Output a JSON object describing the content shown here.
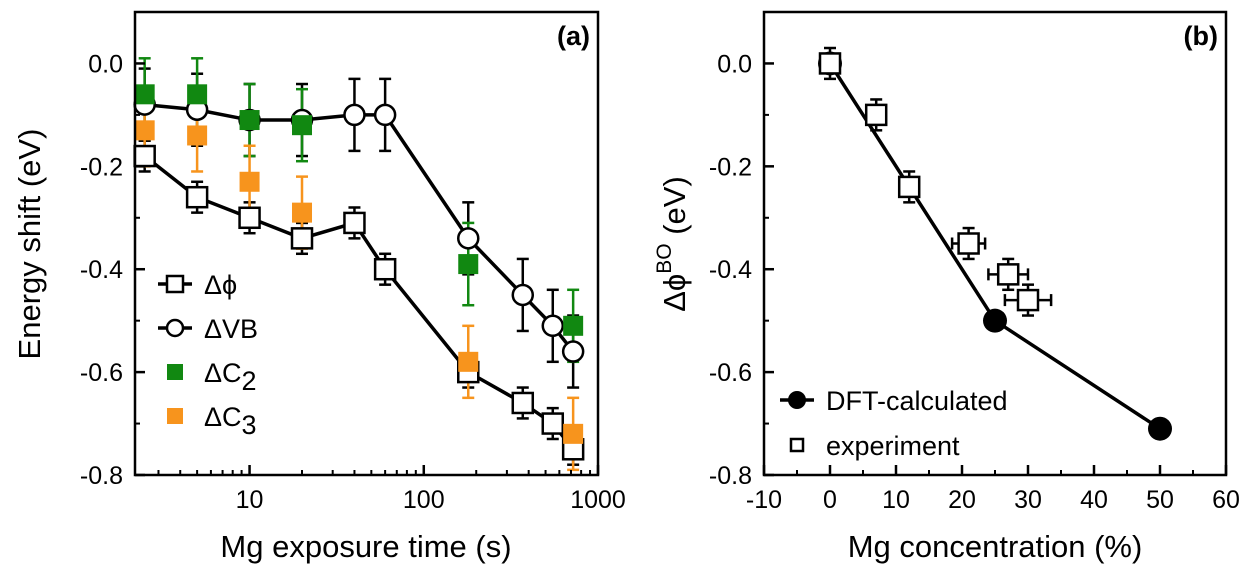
{
  "chart_data": [
    {
      "type": "scatter",
      "panel_label": "(a)",
      "xscale": "log",
      "xlim": [
        2.2,
        1000
      ],
      "ylim": [
        -0.8,
        0.1
      ],
      "xlabel": "Mg exposure time (s)",
      "ylabel": "Energy shift (eV)",
      "xticks": [
        10,
        100,
        1000
      ],
      "xtick_labels": [
        "10",
        "100",
        "1000"
      ],
      "yticks": [
        0.0,
        -0.2,
        -0.4,
        -0.6,
        -0.8
      ],
      "ytick_labels": [
        "0.0",
        "-0.2",
        "-0.4",
        "-0.6",
        "-0.8"
      ],
      "legend_position": "lower-left",
      "series": [
        {
          "name": "Δϕ",
          "legend_base": "Δϕ",
          "legend_sub": "",
          "marker": "open-square",
          "color": "#000000",
          "line": true,
          "x": [
            2.5,
            5,
            10,
            20,
            40,
            60,
            180,
            370,
            550,
            720
          ],
          "y": [
            -0.18,
            -0.26,
            -0.3,
            -0.34,
            -0.31,
            -0.4,
            -0.6,
            -0.66,
            -0.7,
            -0.75
          ],
          "yerr": [
            0.03,
            0.03,
            0.03,
            0.03,
            0.03,
            0.03,
            0.03,
            0.03,
            0.03,
            0.03
          ]
        },
        {
          "name": "ΔVB",
          "legend_base": "ΔVB",
          "legend_sub": "",
          "marker": "open-circle",
          "color": "#000000",
          "line": true,
          "x": [
            2.5,
            5,
            10,
            20,
            40,
            60,
            180,
            370,
            550,
            720
          ],
          "y": [
            -0.08,
            -0.09,
            -0.11,
            -0.11,
            -0.1,
            -0.1,
            -0.34,
            -0.45,
            -0.51,
            -0.56
          ],
          "yerr": [
            0.07,
            0.07,
            0.07,
            0.07,
            0.07,
            0.07,
            0.07,
            0.07,
            0.07,
            0.07
          ]
        },
        {
          "name": "ΔC2",
          "legend_base": "ΔC",
          "legend_sub": "2",
          "marker": "filled-square",
          "color": "#118811",
          "line": false,
          "x": [
            2.5,
            5,
            10,
            20,
            180,
            720
          ],
          "y": [
            -0.06,
            -0.06,
            -0.11,
            -0.12,
            -0.39,
            -0.51
          ],
          "yerr": [
            0.07,
            0.07,
            0.07,
            0.07,
            0.08,
            0.07
          ]
        },
        {
          "name": "ΔC3",
          "legend_base": "ΔC",
          "legend_sub": "3",
          "marker": "filled-square",
          "color": "#f7941d",
          "line": false,
          "x": [
            2.5,
            5,
            10,
            20,
            180,
            720
          ],
          "y": [
            -0.13,
            -0.14,
            -0.23,
            -0.29,
            -0.58,
            -0.72
          ],
          "yerr": [
            0.07,
            0.07,
            0.07,
            0.07,
            0.07,
            0.07
          ]
        }
      ]
    },
    {
      "type": "scatter",
      "panel_label": "(b)",
      "xlim": [
        -10,
        60
      ],
      "ylim": [
        -0.8,
        0.1
      ],
      "xlabel": "Mg concentration (%)",
      "ylabel_base": "Δϕ",
      "ylabel_sup": "BO",
      "ylabel_unit": " (eV)",
      "xticks": [
        -10,
        0,
        10,
        20,
        30,
        40,
        50,
        60
      ],
      "xtick_labels": [
        "-10",
        "0",
        "10",
        "20",
        "30",
        "40",
        "50",
        "60"
      ],
      "yticks": [
        0.0,
        -0.2,
        -0.4,
        -0.6,
        -0.8
      ],
      "ytick_labels": [
        "0.0",
        "-0.2",
        "-0.4",
        "-0.6",
        "-0.8"
      ],
      "legend_position": "lower-left",
      "series": [
        {
          "name": "DFT-calculated",
          "marker": "filled-circle",
          "color": "#000000",
          "line": true,
          "x": [
            0,
            25,
            50
          ],
          "y": [
            0.0,
            -0.5,
            -0.71
          ]
        },
        {
          "name": "experiment",
          "marker": "open-square",
          "color": "#000000",
          "line": false,
          "x": [
            0,
            7,
            12,
            21,
            27,
            30
          ],
          "y": [
            0.0,
            -0.1,
            -0.24,
            -0.35,
            -0.41,
            -0.46
          ],
          "xerr": [
            0,
            0,
            0,
            2.5,
            3.0,
            3.5
          ],
          "yerr": [
            0.03,
            0.03,
            0.03,
            0.03,
            0.03,
            0.03
          ]
        }
      ]
    }
  ]
}
